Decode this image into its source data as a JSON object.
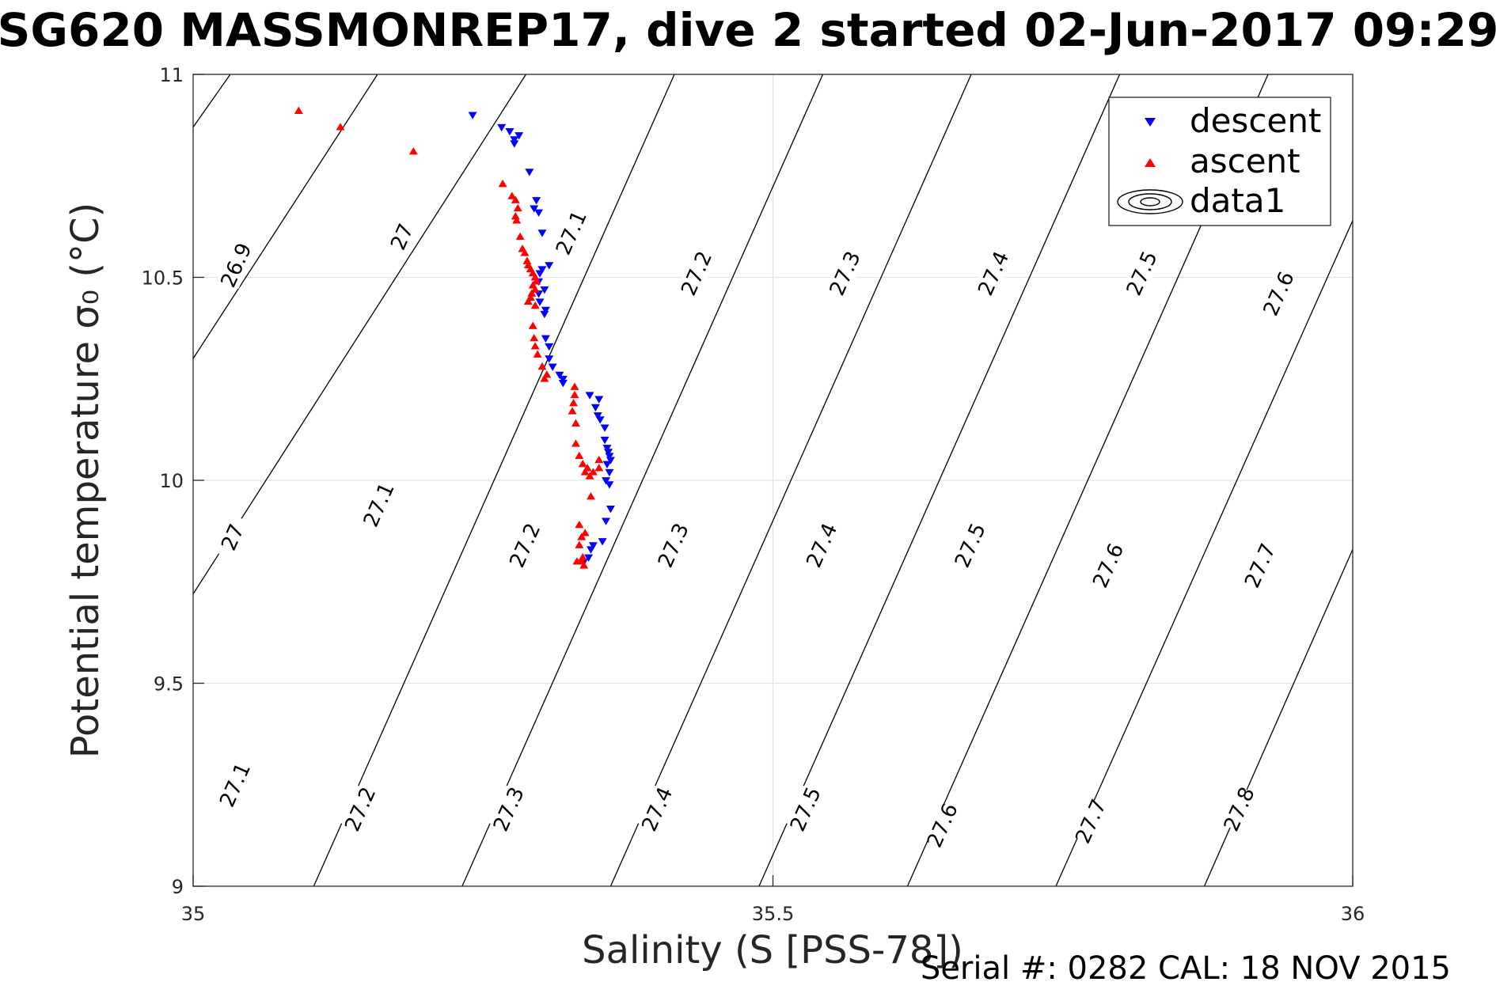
{
  "title": "SG620 MASSMONREP17, dive 2 started 02-Jun-2017 09:29",
  "footer": "Serial #: 0282  CAL: 18 NOV 2015",
  "colors": {
    "descent": "#0000ff",
    "ascent": "#ff0000",
    "grid": "#e3e3e3",
    "contour": "#000000"
  },
  "chart_data": {
    "type": "scatter",
    "xlabel": "Salinity (S [PSS-78])",
    "ylabel": "Potential temperature σ₀ (°C)",
    "xlim": [
      35,
      36
    ],
    "ylim": [
      9,
      11
    ],
    "xticks": [
      "35",
      "35.5",
      "36"
    ],
    "yticks": [
      "9",
      "9.5",
      "10",
      "10.5",
      "11"
    ],
    "grid": true,
    "legend_position": "top-right",
    "legend": [
      "descent",
      "ascent",
      "data1"
    ],
    "contours": {
      "levels": [
        26.9,
        27,
        27.1,
        27.2,
        27.3,
        27.4,
        27.5,
        27.6,
        27.7,
        27.8
      ],
      "lines": [
        {
          "level": "26.9",
          "x": [
            35.0,
            35.032
          ],
          "y": [
            10.87,
            11.0
          ]
        },
        {
          "level": "27",
          "x": [
            35.0,
            35.159
          ],
          "y": [
            10.3,
            11.0
          ]
        },
        {
          "level": "27.1",
          "x": [
            35.0,
            35.287
          ],
          "y": [
            9.72,
            11.0
          ]
        },
        {
          "level": "27.1",
          "x": [
            35.0,
            35.0
          ],
          "y": [
            9.12,
            9.12
          ]
        },
        {
          "level": "27.2",
          "x": [
            35.104,
            35.415
          ],
          "y": [
            9.0,
            11.0
          ]
        },
        {
          "level": "27.3",
          "x": [
            35.232,
            35.543
          ],
          "y": [
            9.0,
            11.0
          ]
        },
        {
          "level": "27.4",
          "x": [
            35.36,
            35.671
          ],
          "y": [
            9.0,
            11.0
          ]
        },
        {
          "level": "27.5",
          "x": [
            35.488,
            35.799
          ],
          "y": [
            9.0,
            11.0
          ]
        },
        {
          "level": "27.6",
          "x": [
            35.616,
            35.927
          ],
          "y": [
            9.0,
            11.0
          ]
        },
        {
          "level": "27.7",
          "x": [
            35.744,
            36.0
          ],
          "y": [
            9.0,
            10.64
          ]
        },
        {
          "level": "27.8",
          "x": [
            35.872,
            36.0
          ],
          "y": [
            9.0,
            9.83
          ]
        }
      ],
      "labels": [
        {
          "text": "26.9",
          "x": 35.037,
          "y": 10.53
        },
        {
          "text": "27",
          "x": 35.18,
          "y": 10.6
        },
        {
          "text": "27.1",
          "x": 35.326,
          "y": 10.61
        },
        {
          "text": "27.2",
          "x": 35.434,
          "y": 10.51
        },
        {
          "text": "27.3",
          "x": 35.562,
          "y": 10.51
        },
        {
          "text": "27.4",
          "x": 35.69,
          "y": 10.51
        },
        {
          "text": "27.5",
          "x": 35.818,
          "y": 10.51
        },
        {
          "text": "27.6",
          "x": 35.936,
          "y": 10.46
        },
        {
          "text": "27",
          "x": 35.034,
          "y": 9.86
        },
        {
          "text": "27.1",
          "x": 35.16,
          "y": 9.94
        },
        {
          "text": "27.2",
          "x": 35.286,
          "y": 9.84
        },
        {
          "text": "27.3",
          "x": 35.414,
          "y": 9.84
        },
        {
          "text": "27.4",
          "x": 35.542,
          "y": 9.84
        },
        {
          "text": "27.5",
          "x": 35.67,
          "y": 9.84
        },
        {
          "text": "27.6",
          "x": 35.789,
          "y": 9.79
        },
        {
          "text": "27.7",
          "x": 35.92,
          "y": 9.79
        },
        {
          "text": "27.1",
          "x": 35.036,
          "y": 9.25
        },
        {
          "text": "27.2",
          "x": 35.144,
          "y": 9.19
        },
        {
          "text": "27.3",
          "x": 35.272,
          "y": 9.19
        },
        {
          "text": "27.4",
          "x": 35.4,
          "y": 9.19
        },
        {
          "text": "27.5",
          "x": 35.528,
          "y": 9.19
        },
        {
          "text": "27.6",
          "x": 35.646,
          "y": 9.15
        },
        {
          "text": "27.7",
          "x": 35.774,
          "y": 9.16
        },
        {
          "text": "27.8",
          "x": 35.902,
          "y": 9.19
        }
      ]
    },
    "series": [
      {
        "name": "descent",
        "marker": "triangle-down",
        "points": [
          [
            35.241,
            10.9
          ],
          [
            35.266,
            10.87
          ],
          [
            35.273,
            10.86
          ],
          [
            35.281,
            10.85
          ],
          [
            35.277,
            10.84
          ],
          [
            35.277,
            10.83
          ],
          [
            35.29,
            10.76
          ],
          [
            35.296,
            10.69
          ],
          [
            35.294,
            10.67
          ],
          [
            35.298,
            10.66
          ],
          [
            35.301,
            10.61
          ],
          [
            35.307,
            10.53
          ],
          [
            35.301,
            10.52
          ],
          [
            35.299,
            10.51
          ],
          [
            35.298,
            10.49
          ],
          [
            35.303,
            10.47
          ],
          [
            35.298,
            10.46
          ],
          [
            35.299,
            10.44
          ],
          [
            35.304,
            10.42
          ],
          [
            35.303,
            10.41
          ],
          [
            35.304,
            10.35
          ],
          [
            35.307,
            10.33
          ],
          [
            35.307,
            10.3
          ],
          [
            35.31,
            10.28
          ],
          [
            35.316,
            10.26
          ],
          [
            35.319,
            10.25
          ],
          [
            35.319,
            10.24
          ],
          [
            35.342,
            10.21
          ],
          [
            35.35,
            10.2
          ],
          [
            35.347,
            10.18
          ],
          [
            35.349,
            10.16
          ],
          [
            35.351,
            10.15
          ],
          [
            35.355,
            10.13
          ],
          [
            35.355,
            10.1
          ],
          [
            35.357,
            10.08
          ],
          [
            35.358,
            10.07
          ],
          [
            35.359,
            10.06
          ],
          [
            35.36,
            10.05
          ],
          [
            35.357,
            10.04
          ],
          [
            35.359,
            10.02
          ],
          [
            35.356,
            10.0
          ],
          [
            35.359,
            9.99
          ],
          [
            35.36,
            9.93
          ],
          [
            35.356,
            9.9
          ],
          [
            35.353,
            9.85
          ],
          [
            35.345,
            9.84
          ],
          [
            35.343,
            9.83
          ],
          [
            35.341,
            9.81
          ],
          [
            35.337,
            9.8
          ]
        ]
      },
      {
        "name": "ascent",
        "marker": "triangle-up",
        "points": [
          [
            35.091,
            10.91
          ],
          [
            35.127,
            10.87
          ],
          [
            35.19,
            10.81
          ],
          [
            35.267,
            10.73
          ],
          [
            35.275,
            10.7
          ],
          [
            35.278,
            10.69
          ],
          [
            35.28,
            10.67
          ],
          [
            35.278,
            10.65
          ],
          [
            35.279,
            10.64
          ],
          [
            35.282,
            10.6
          ],
          [
            35.284,
            10.57
          ],
          [
            35.286,
            10.56
          ],
          [
            35.288,
            10.54
          ],
          [
            35.289,
            10.53
          ],
          [
            35.291,
            10.52
          ],
          [
            35.293,
            10.51
          ],
          [
            35.295,
            10.5
          ],
          [
            35.296,
            10.49
          ],
          [
            35.293,
            10.48
          ],
          [
            35.295,
            10.47
          ],
          [
            35.292,
            10.46
          ],
          [
            35.291,
            10.45
          ],
          [
            35.289,
            10.44
          ],
          [
            35.295,
            10.43
          ],
          [
            35.293,
            10.38
          ],
          [
            35.294,
            10.35
          ],
          [
            35.295,
            10.33
          ],
          [
            35.297,
            10.31
          ],
          [
            35.301,
            10.28
          ],
          [
            35.305,
            10.26
          ],
          [
            35.303,
            10.25
          ],
          [
            35.329,
            10.23
          ],
          [
            35.329,
            10.21
          ],
          [
            35.328,
            10.19
          ],
          [
            35.327,
            10.17
          ],
          [
            35.33,
            10.14
          ],
          [
            35.33,
            10.09
          ],
          [
            35.333,
            10.06
          ],
          [
            35.336,
            10.04
          ],
          [
            35.34,
            10.03
          ],
          [
            35.338,
            10.02
          ],
          [
            35.342,
            10.01
          ],
          [
            35.345,
            10.02
          ],
          [
            35.35,
            10.03
          ],
          [
            35.35,
            10.05
          ],
          [
            35.343,
            9.96
          ],
          [
            35.333,
            9.89
          ],
          [
            35.338,
            9.87
          ],
          [
            35.335,
            9.86
          ],
          [
            35.333,
            9.84
          ],
          [
            35.336,
            9.81
          ],
          [
            35.331,
            9.8
          ],
          [
            35.335,
            9.8
          ],
          [
            35.337,
            9.79
          ]
        ]
      },
      {
        "name": "data1",
        "marker": "contour",
        "points": []
      }
    ]
  }
}
